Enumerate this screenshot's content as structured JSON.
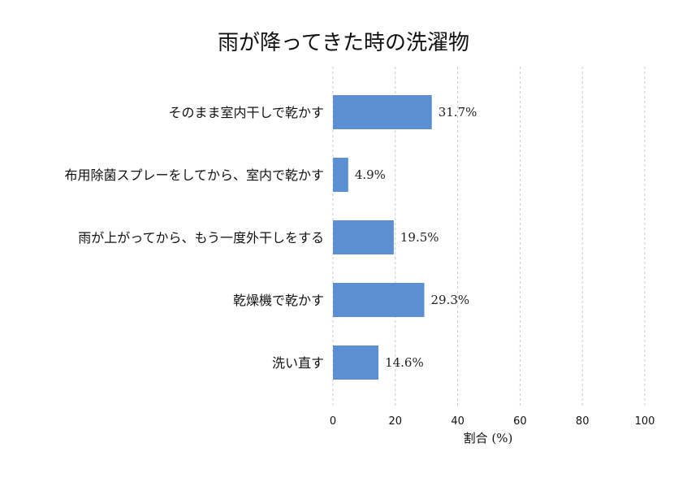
{
  "chart_data": {
    "type": "bar",
    "orientation": "horizontal",
    "title": "雨が降ってきた時の洗濯物",
    "xlabel": "割合 (%)",
    "ylabel": "",
    "xlim": [
      0,
      100
    ],
    "xticks": [
      0,
      20,
      40,
      60,
      80,
      100
    ],
    "grid": true,
    "categories": [
      "そのまま室内干しで乾かす",
      "布用除菌スプレーをしてから、室内で乾かす",
      "雨が上がってから、もう一度外干しをする",
      "乾燥機で乾かす",
      "洗い直す"
    ],
    "values": [
      31.7,
      4.9,
      19.5,
      29.3,
      14.6
    ],
    "value_labels": [
      "31.7%",
      "4.9%",
      "19.5%",
      "29.3%",
      "14.6%"
    ],
    "bar_color": "#5b8fd1"
  }
}
